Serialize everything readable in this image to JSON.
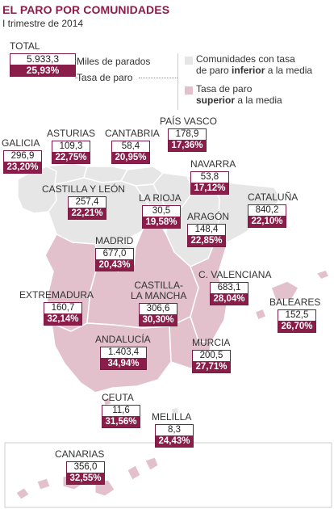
{
  "header": {
    "title": "EL PARO POR COMUNIDADES",
    "subtitle": "I trimestre de 2014"
  },
  "total": {
    "label": "TOTAL",
    "value": "5.933,3",
    "rate": "25,93%",
    "value_caption": "Miles de parados",
    "rate_caption": "Tasa de paro"
  },
  "legend": {
    "lower": {
      "line1": "Comunidades con tasa",
      "line2_pre": "de paro ",
      "line2_bold": "inferior",
      "line2_post": " a la media",
      "color": "#e6e6e6"
    },
    "higher": {
      "line1": "Tasa de paro",
      "line2_bold": "superior",
      "line2_post": " a la media",
      "color": "#e2c1cc"
    }
  },
  "colors": {
    "accent": "#8b1d4a",
    "lower_fill": "#e6e6e6",
    "higher_fill": "#e2c1cc",
    "border": "#ffffff"
  },
  "regions": [
    {
      "id": "galicia",
      "name": "GALICIA",
      "value": "296,9",
      "rate": "23,20%"
    },
    {
      "id": "asturias",
      "name": "ASTURIAS",
      "value": "109,3",
      "rate": "22,75%"
    },
    {
      "id": "cantabria",
      "name": "CANTABRIA",
      "value": "58,4",
      "rate": "20,95%"
    },
    {
      "id": "pais-vasco",
      "name": "PAÍS VASCO",
      "value": "178,9",
      "rate": "17,36%"
    },
    {
      "id": "navarra",
      "name": "NAVARRA",
      "value": "53,8",
      "rate": "17,12%"
    },
    {
      "id": "castilla-leon",
      "name": "CASTILLA Y LEÓN",
      "value": "257,4",
      "rate": "22,21%"
    },
    {
      "id": "la-rioja",
      "name": "LA RIOJA",
      "value": "30,5",
      "rate": "19,58%"
    },
    {
      "id": "aragon",
      "name": "ARAGÓN",
      "value": "148,4",
      "rate": "22,85%"
    },
    {
      "id": "cataluna",
      "name": "CATALUÑA",
      "value": "840,2",
      "rate": "22,10%"
    },
    {
      "id": "madrid",
      "name": "MADRID",
      "value": "677,0",
      "rate": "20,43%"
    },
    {
      "id": "castilla-la-mancha",
      "name_line1": "CASTILLA-",
      "name_line2": "LA MANCHA",
      "value": "306,6",
      "rate": "30,30%"
    },
    {
      "id": "c-valenciana",
      "name": "C. VALENCIANA",
      "value": "683,1",
      "rate": "28,04%"
    },
    {
      "id": "extremadura",
      "name": "EXTREMADURA",
      "value": "160,7",
      "rate": "32,14%"
    },
    {
      "id": "baleares",
      "name": "BALEARES",
      "value": "152,5",
      "rate": "26,70%"
    },
    {
      "id": "andalucia",
      "name": "ANDALUCÍA",
      "value": "1.403,4",
      "rate": "34,94%"
    },
    {
      "id": "murcia",
      "name": "MURCIA",
      "value": "200,5",
      "rate": "27,71%"
    },
    {
      "id": "ceuta",
      "name": "CEUTA",
      "value": "11,6",
      "rate": "31,56%"
    },
    {
      "id": "melilla",
      "name": "MELILLA",
      "value": "8,3",
      "rate": "24,43%"
    },
    {
      "id": "canarias",
      "name": "CANARIAS",
      "value": "356,0",
      "rate": "32,55%"
    }
  ]
}
